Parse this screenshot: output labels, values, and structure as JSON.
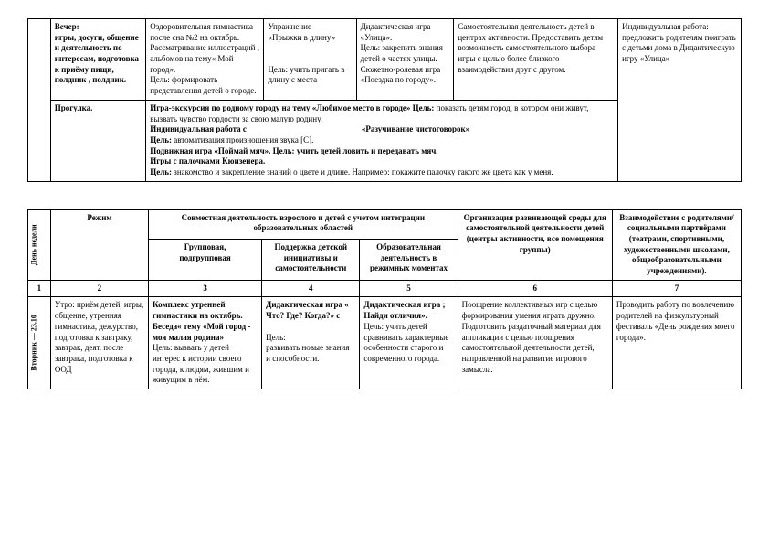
{
  "table1": {
    "row1": {
      "c1": "Вечер:\nигры, досуги, общение и деятельность по интересам, подготовка к приёму пищи, полдник , полдник.",
      "c2": "Оздоровительная гимнастика после сна №2 на октябрь.\nРассматривание иллюстраций , альбомов на тему« Мой город».\nЦель: формировать представления детей о городе.",
      "c3": "Упражнение\n«Прыжки в длину»\n\n\nЦель: учить пригать в длину с места",
      "c4": "Дидактическая игра «Улица».\nЦель: закрепить знания детей о частях улицы.\nСюжетно-ролевая игра «Поездка по городу».",
      "c5": "Самостоятельная деятельность детей в центрах активности. Предоставить детям возможность самостоятельного выбора игры с целью более близкого взаимодействия друг с другом.",
      "c6": "Индивидуальная работа: предложить родителям поиграть с детьми дома в Дидактическую игру «Улица»"
    },
    "row2": {
      "c1": "Прогулка.",
      "c2a": "Игра-экскурсия по родному городу на тему «Любимое место в городе» Цель: ",
      "c2b": "показать детям город, в котором они живут, вызвать чувство гордости за свою малую родину.",
      "c2c": "Индивидуальная работа с",
      "c2d": "«Разучивание чистоговорок»",
      "c2e": "Цель: ",
      "c2f": "автоматизация произношения звука [С].",
      "c2g": "Подвижная игра «Поймай мяч». Цель: учить детей ловить и передавать мяч.",
      "c2h": "Игры с палочками Кюизенера.",
      "c2i": "Цель: ",
      "c2j": "знакомство и закрепление знаний о цвете и длине. Например: покажите палочку такого же цвета как у меня."
    }
  },
  "table2": {
    "header": {
      "day": "День недели",
      "regime": "Режим",
      "joint": "Совместная деятельность взрослого и детей с учетом интеграции образовательных областей",
      "group": "Групповая,\nподгрупповая",
      "support": "Поддержка детской инициативы и самостоятельности",
      "edu": "Образовательная деятельность в режимных моментах",
      "org": "Организация развивающей среды для самостоятельной деятельности детей (центры активности, все помещения группы)",
      "partner": "Взаимодействие с родителями/ социальными партнёрами (театрами, спортивными, художественными школами, общеобразовательными учреждениями)."
    },
    "nums": {
      "n1": "1",
      "n2": "2",
      "n3": "3",
      "n4": "4",
      "n5": "5",
      "n6": "6",
      "n7": "7"
    },
    "row": {
      "day": "Вторник — 23.10",
      "c1": "Утро: приём детей, игры, общение, утренняя гимнастика, дежурство, подготовка к завтраку, завтрак, деят. после завтрака, подготовка к ООД",
      "c2a": "Комплекс утренней гимнастики  на октябрь.",
      "c2b": "Беседа« тему «Мой город - моя малая родина»",
      "c2c": "Цель: вызвать у детей интерес к истории своего города, к людям, жившим и живущим в нём.",
      "c3a": "Дидактическая игра « Что? Где? Когда?» с",
      "c3b": "Цель:\nразвивать новые знания и способности.",
      "c4a": "Дидактическая игра ; Найди отличия».",
      "c4b": "Цель: учить детей сравнивать характерные особенности старого и современного города.",
      "c5": "Поощрение коллективных игр с целью формирования умения играть дружно.\nПодготовить раздаточный материал для аппликации с целью поощрения самостоятельной деятельности детей, направленной на развитие игрового замысла.",
      "c6": "Проводить работу по вовлечению родителей на физкультурный фестиваль «День рождения моего города»."
    }
  }
}
